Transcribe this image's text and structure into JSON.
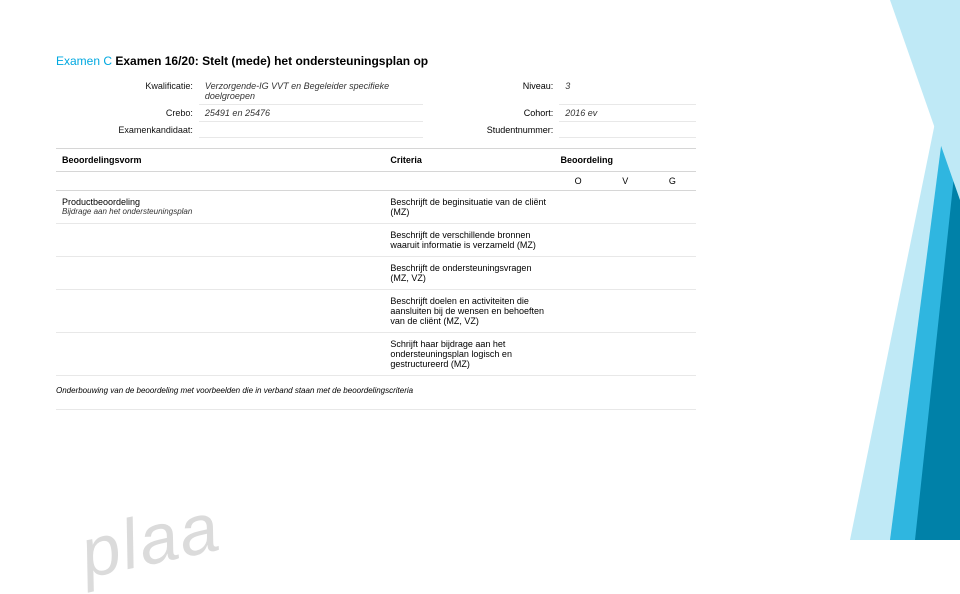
{
  "colors": {
    "accent": "#00a8e0",
    "decor_light": "#bfe9f6",
    "decor_mid": "#2fb6e0",
    "decor_dark": "#0081a8",
    "border": "#d6d6d6",
    "border_light": "#e8e8e8",
    "text": "#111111",
    "muted": "#333333",
    "watermark": "#bfbfbf"
  },
  "title": {
    "prefix": "Examen C",
    "main": "Examen 16/20: Stelt (mede) het ondersteuningsplan op"
  },
  "meta": {
    "rows": [
      {
        "label1": "Kwalificatie:",
        "value1": "Verzorgende-IG VVT en Begeleider specifieke doelgroepen",
        "label2": "Niveau:",
        "value2": "3"
      },
      {
        "label1": "Crebo:",
        "value1": "25491 en 25476",
        "label2": "Cohort:",
        "value2": "2016 ev"
      },
      {
        "label1": "Examenkandidaat:",
        "value1": "",
        "label2": "Studentnummer:",
        "value2": ""
      }
    ]
  },
  "assessment": {
    "headers": {
      "form": "Beoordelingsvorm",
      "criteria": "Criteria",
      "rating": "Beoordeling"
    },
    "rating_cols": [
      "O",
      "V",
      "G"
    ],
    "form_name": "Productbeoordeling",
    "form_sub": "Bijdrage aan het ondersteuningsplan",
    "criteria": [
      "Beschrijft de beginsituatie van de cliënt (MZ)",
      "Beschrijft de verschillende bronnen waaruit informatie is verzameld (MZ)",
      "Beschrijft de ondersteuningsvragen (MZ, VZ)",
      "Beschrijft doelen en activiteiten die aansluiten bij de wensen en behoeften van de cliënt (MZ, VZ)",
      "Schrijft haar bijdrage aan het ondersteuningsplan logisch en gestructureerd (MZ)"
    ]
  },
  "footer_note": "Onderbouwing van de beoordeling met voorbeelden die in verband staan met de beoordelingscriteria",
  "watermark": "plaa"
}
